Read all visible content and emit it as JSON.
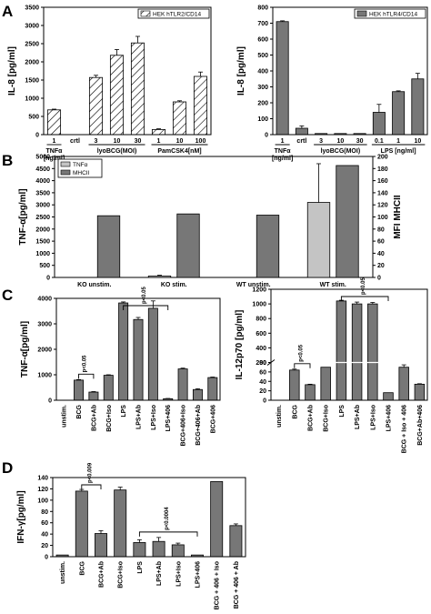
{
  "panel_letters": [
    "A",
    "B",
    "C",
    "D"
  ],
  "colors": {
    "bar": "#777777",
    "bar_light": "#c4c4c4",
    "hatch_fill": "#ffffff",
    "axis": "#000000"
  },
  "chart_data": [
    {
      "id": "A1",
      "type": "bar",
      "hatched": true,
      "ylabel": "IL-8 [pg/ml]",
      "ylim": [
        0,
        3500
      ],
      "yticks": [
        "0",
        "500",
        "1000",
        "1500",
        "2000",
        "2500",
        "3000",
        "3500"
      ],
      "legend": "HEK hTLR2/CD14",
      "legend_position": "top-right",
      "categories": [
        "1",
        "crtl",
        "3",
        "10",
        "30",
        "1",
        "10",
        "100"
      ],
      "values": [
        680,
        0,
        1570,
        2180,
        2520,
        140,
        900,
        1600
      ],
      "errors": [
        20,
        0,
        60,
        160,
        180,
        20,
        30,
        120
      ],
      "groups": [
        "TNFα\n[ng/ml]",
        "",
        "lyoBCG(MOI)",
        "PamCSK4[nM]"
      ],
      "annotations": []
    },
    {
      "id": "A2",
      "type": "bar",
      "hatched": false,
      "ylabel": "IL-8 [pg/ml]",
      "ylim": [
        0,
        800
      ],
      "yticks": [
        "0",
        "100",
        "200",
        "300",
        "400",
        "500",
        "600",
        "700",
        "800"
      ],
      "legend": "HEK hTLR4/CD14",
      "legend_position": "top-right",
      "categories": [
        "1",
        "crtl",
        "3",
        "10",
        "30",
        "0.1",
        "1",
        "10"
      ],
      "values": [
        710,
        40,
        6,
        3,
        3,
        140,
        270,
        350
      ],
      "errors": [
        5,
        15,
        0,
        0,
        0,
        50,
        5,
        35
      ],
      "groups": [
        "TNFα\n[ng/ml]",
        "",
        "lyoBCG(MOI)",
        "LPS [ng/ml]"
      ],
      "annotations": []
    },
    {
      "id": "B",
      "type": "bar",
      "hatched": false,
      "ylabel": "TNF-α[pg/ml]",
      "ylim": [
        0,
        5000
      ],
      "yticks": [
        "0",
        "500",
        "1000",
        "1500",
        "2000",
        "2500",
        "3000",
        "3500",
        "4000",
        "4500",
        "5000"
      ],
      "y2label": "MFI MHCII",
      "y2lim": [
        0,
        200
      ],
      "y2ticks": [
        "0",
        "20",
        "40",
        "60",
        "80",
        "100",
        "120",
        "140",
        "160",
        "180",
        "200"
      ],
      "legend_items": [
        "TNFα",
        "MHCII"
      ],
      "legend_position": "top-left",
      "categories": [
        "KO unstim.",
        "KO stim.",
        "WT unstim.",
        "WT stim."
      ],
      "series": [
        {
          "name": "TNFα",
          "axis": "left",
          "values": [
            0,
            60,
            0,
            3100
          ],
          "errors": [
            0,
            30,
            0,
            1600
          ]
        },
        {
          "name": "MHCII",
          "axis": "right",
          "values": [
            102,
            105,
            103,
            185
          ],
          "errors": [
            0,
            0,
            0,
            0
          ]
        }
      ]
    },
    {
      "id": "C1",
      "type": "bar",
      "hatched": false,
      "ylabel": "TNF-α[pg/ml]",
      "ylim": [
        0,
        4000
      ],
      "yticks": [
        "0",
        "1000",
        "2000",
        "3000",
        "4000"
      ],
      "categories": [
        "unstim.",
        "BCG",
        "BCG+Ab",
        "BCG+Iso",
        "LPS",
        "LPS+Ab",
        "LPS+Iso",
        "LPS+406",
        "BCG+406+Iso",
        "BCG+406+Ab",
        "BCG+406"
      ],
      "values": [
        0,
        790,
        320,
        980,
        3820,
        3170,
        3610,
        60,
        1230,
        420,
        890
      ],
      "errors": [
        0,
        20,
        20,
        20,
        40,
        80,
        290,
        10,
        30,
        30,
        20
      ],
      "annotations": [
        {
          "text": "p<0.05",
          "from": 1,
          "to": 2
        },
        {
          "text": "p<0.05",
          "from": 4,
          "to": 7
        }
      ]
    },
    {
      "id": "C2",
      "type": "bar",
      "hatched": false,
      "ylabel": "IL-12p70 [pg/ml]",
      "ylim": [
        0,
        1200
      ],
      "yticks": [
        "0",
        "20",
        "40",
        "60",
        "80",
        "200",
        "400",
        "600",
        "800",
        "1000",
        "1200"
      ],
      "axis_break": true,
      "categories": [
        "unstim.",
        "BCG",
        "BCG+Ab",
        "BCG+Iso",
        "LPS",
        "LPS+Ab",
        "LPS+Iso",
        "LPS+406",
        "BCG + Iso + 406",
        "BCG+Ab+406"
      ],
      "values": [
        0,
        64,
        33,
        70,
        1040,
        1000,
        1000,
        16,
        70,
        34
      ],
      "errors": [
        0,
        2,
        1,
        0,
        10,
        25,
        20,
        0,
        5,
        1
      ],
      "annotations": [
        {
          "text": "p<0.05",
          "from": 1,
          "to": 2
        },
        {
          "text": "p<0.05",
          "from": 4,
          "to": 7
        }
      ]
    },
    {
      "id": "D",
      "type": "bar",
      "hatched": false,
      "ylabel": "IFN-γ[pg/ml]",
      "ylim": [
        0,
        140
      ],
      "yticks": [
        "0",
        "20",
        "40",
        "60",
        "80",
        "100",
        "120",
        "140"
      ],
      "categories": [
        "unstim.",
        "BCG",
        "BCG+Ab",
        "BCG+Iso",
        "LPS",
        "LPS+Ab",
        "LPS+Iso",
        "LPS+406",
        "BCG + 406 + Iso",
        "BCG + 406 + Ab"
      ],
      "values": [
        3,
        116,
        41,
        118,
        25,
        27,
        21,
        3,
        133,
        55
      ],
      "errors": [
        0,
        3,
        5,
        5,
        5,
        7,
        3,
        0,
        0,
        3
      ],
      "annotations": [
        {
          "text": "p<0.009",
          "from": 1,
          "to": 2
        },
        {
          "text": "p<0.0004",
          "from": 4,
          "to": 7
        }
      ]
    }
  ]
}
